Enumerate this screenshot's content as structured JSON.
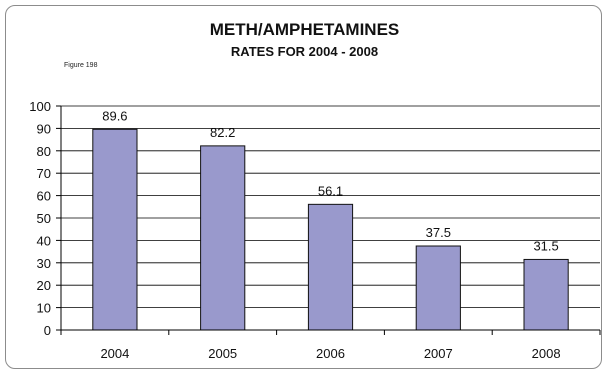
{
  "chart_data": {
    "type": "bar",
    "title": "METH/AMPHETAMINES",
    "subtitle": "RATES FOR 2004 - 2008",
    "figure_label": "Figure 198",
    "categories": [
      "2004",
      "2005",
      "2006",
      "2007",
      "2008"
    ],
    "values": [
      89.6,
      82.2,
      56.1,
      37.5,
      31.5
    ],
    "data_labels": [
      "89.6",
      "82.2",
      "56.1",
      "37.5",
      "31.5"
    ],
    "ylim": [
      0,
      100
    ],
    "yticks": [
      0,
      10,
      20,
      30,
      40,
      50,
      60,
      70,
      80,
      90,
      100
    ],
    "grid": true,
    "legend": "none",
    "colors": {
      "bar_fill": "#9999cc",
      "bar_stroke": "#111111",
      "grid": "#000000",
      "axis": "#000000"
    }
  }
}
